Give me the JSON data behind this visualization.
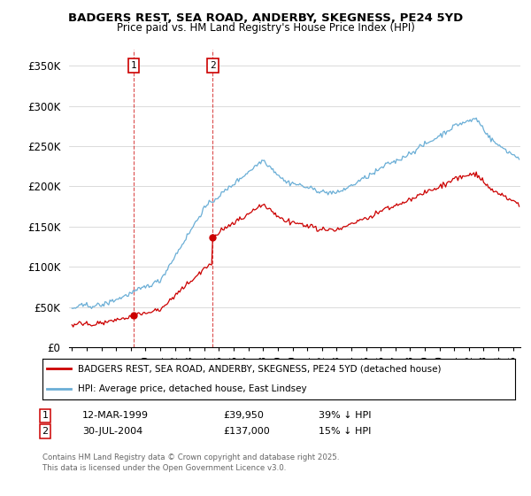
{
  "title": "BADGERS REST, SEA ROAD, ANDERBY, SKEGNESS, PE24 5YD",
  "subtitle": "Price paid vs. HM Land Registry's House Price Index (HPI)",
  "ylabel_ticks": [
    "£0",
    "£50K",
    "£100K",
    "£150K",
    "£200K",
    "£250K",
    "£300K",
    "£350K"
  ],
  "ytick_values": [
    0,
    50000,
    100000,
    150000,
    200000,
    250000,
    300000,
    350000
  ],
  "ylim": [
    0,
    370000
  ],
  "legend_line1": "BADGERS REST, SEA ROAD, ANDERBY, SKEGNESS, PE24 5YD (detached house)",
  "legend_line2": "HPI: Average price, detached house, East Lindsey",
  "transaction1_date": "12-MAR-1999",
  "transaction1_price": "£39,950",
  "transaction1_hpi": "39% ↓ HPI",
  "transaction2_date": "30-JUL-2004",
  "transaction2_price": "£137,000",
  "transaction2_hpi": "15% ↓ HPI",
  "footer": "Contains HM Land Registry data © Crown copyright and database right 2025.\nThis data is licensed under the Open Government Licence v3.0.",
  "hpi_color": "#6aaed6",
  "price_color": "#cc0000",
  "background_color": "#ffffff",
  "grid_color": "#cccccc",
  "transaction1_x": 1999.19,
  "transaction2_x": 2004.58,
  "price1": 39950,
  "price2": 137000
}
